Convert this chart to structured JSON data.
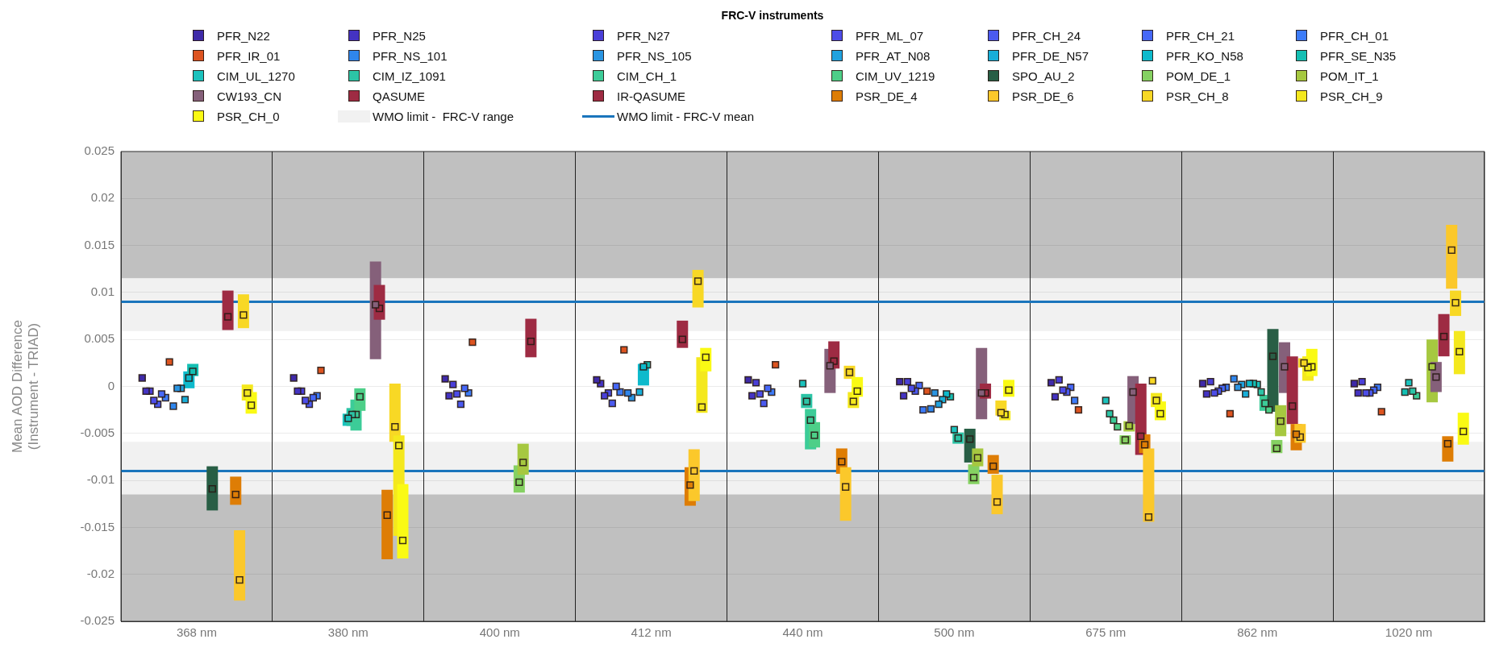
{
  "chart_data": {
    "type": "scatter",
    "title": "FRC-V instruments",
    "ylabel": "Mean AOD Difference\n(Instrument - TRIAD)",
    "categories": [
      "368 nm",
      "380 nm",
      "400 nm",
      "412 nm",
      "440 nm",
      "500 nm",
      "675 nm",
      "862 nm",
      "1020 nm"
    ],
    "ylim": [
      -0.025,
      0.025
    ],
    "yticks": [
      -0.025,
      -0.02,
      -0.015,
      -0.01,
      -0.005,
      0,
      0.005,
      0.01,
      0.015,
      0.02,
      0.025
    ],
    "grid": true,
    "legend": "top",
    "marker": "square",
    "bands": [
      {
        "axis": "y",
        "from": 0.0115,
        "to": 0.025,
        "color": "#c0c0c0"
      },
      {
        "axis": "y",
        "from": 0.0059,
        "to": 0.0115,
        "label": "WMO limit -  FRC-V range",
        "color": "#f1f1f1"
      },
      {
        "axis": "y",
        "from": -0.0115,
        "to": -0.0059,
        "color": "#f1f1f1"
      },
      {
        "axis": "y",
        "from": -0.025,
        "to": -0.0115,
        "color": "#c0c0c0"
      }
    ],
    "ref_lines": [
      {
        "axis": "y",
        "value": 0.009,
        "label": "WMO limit - FRC-V mean",
        "color": "#1a75bc",
        "line_style": "solid"
      },
      {
        "axis": "y",
        "value": -0.009,
        "color": "#1a75bc",
        "line_style": "solid"
      }
    ],
    "series": [
      {
        "name": "PFR_N22",
        "color": "#3f2aa8",
        "values": [
          0.0009,
          0.0009,
          0.0008,
          0.0007,
          0.0007,
          0.0005,
          0.0004,
          0.0003,
          0.0003
        ]
      },
      {
        "name": "PFR_N25",
        "color": "#4433c2",
        "values": [
          -0.0005,
          -0.0005,
          -0.001,
          0.0003,
          -0.001,
          -0.001,
          -0.0011,
          -0.0008,
          -0.0007
        ]
      },
      {
        "name": "PFR_N27",
        "color": "#4a3fd8",
        "values": [
          -0.0005,
          -0.0005,
          0.0002,
          -0.001,
          0.0004,
          0.0005,
          0.0007,
          0.0005,
          0.0005
        ]
      },
      {
        "name": "PFR_ML_07",
        "color": "#4d4de8",
        "values": [
          -0.0015,
          -0.0015,
          -0.0008,
          -0.0007,
          -0.0008,
          -0.0002,
          -0.0004,
          -0.0007,
          -0.0007
        ]
      },
      {
        "name": "PFR_CH_24",
        "color": "#4b5af0",
        "values": [
          -0.0019,
          -0.0019,
          -0.0019,
          -0.0018,
          -0.0018,
          -0.0005,
          -0.0006,
          -0.0005,
          -0.0007
        ]
      },
      {
        "name": "PFR_CH_21",
        "color": "#4668f8",
        "values": [
          -0.0008,
          -0.0012,
          -0.0002,
          0.0,
          -0.0002,
          0.0001,
          -0.0001,
          -0.0002,
          -0.0004
        ]
      },
      {
        "name": "PFR_CH_01",
        "color": "#3d7cf8",
        "values": [
          -0.0012,
          -0.001,
          -0.0007,
          -0.0006,
          -0.0006,
          -0.0025,
          -0.0015,
          -0.0001,
          -0.0001
        ]
      },
      {
        "name": "PFR_IR_01",
        "color": "#dd5420",
        "values": [
          0.0026,
          0.0017,
          0.0047,
          0.0039,
          0.0023,
          -0.0005,
          -0.0025,
          -0.0029,
          -0.0027
        ]
      },
      {
        "name": "PFR_NS_101",
        "color": "#2f86ec",
        "values": [
          -0.0021,
          null,
          null,
          -0.0007,
          null,
          -0.0024,
          null,
          0.0008,
          null
        ]
      },
      {
        "name": "PFR_NS_105",
        "color": "#2a95e2",
        "values": [
          -0.0002,
          null,
          null,
          -0.0012,
          null,
          -0.0007,
          null,
          -0.0001,
          null
        ]
      },
      {
        "name": "PFR_AT_N08",
        "color": "#20a2df",
        "values": [
          -0.0002,
          null,
          null,
          null,
          null,
          -0.0019,
          null,
          0.0002,
          null
        ]
      },
      {
        "name": "PFR_DE_N57",
        "color": "#18aed8",
        "values": [
          -0.0014,
          null,
          null,
          -0.0006,
          null,
          -0.0014,
          null,
          -0.0008,
          null
        ]
      },
      {
        "name": "PFR_KO_N58",
        "color": "#0ebacc",
        "values": [
          0.0009,
          null,
          null,
          0.0021,
          null,
          -0.0008,
          null,
          0.0003,
          null
        ],
        "errors": [
          [
            -0.0002,
            0.0016
          ],
          null,
          null,
          [
            0.0001,
            0.0024
          ],
          null,
          null,
          null,
          null,
          null
        ]
      },
      {
        "name": "PFR_SE_N35",
        "color": "#14bfb3",
        "values": [
          0.0016,
          null,
          null,
          0.0023,
          null,
          -0.0011,
          null,
          0.0003,
          -0.0006
        ],
        "errors": [
          [
            0.0011,
            0.0024
          ],
          null,
          null,
          null,
          null,
          null,
          null,
          null,
          null
        ]
      },
      {
        "name": "CIM_UL_1270",
        "color": "#1bc2bd",
        "values": [
          null,
          -0.0034,
          null,
          null,
          0.0003,
          -0.0046,
          -0.0015,
          0.0002,
          0.0004
        ],
        "errors": [
          null,
          [
            -0.0042,
            -0.0029
          ],
          null,
          null,
          null,
          null,
          null,
          null,
          null
        ]
      },
      {
        "name": "CIM_IZ_1091",
        "color": "#2cc4a6",
        "values": [
          null,
          -0.003,
          null,
          null,
          -0.0016,
          -0.0055,
          -0.0029,
          -0.0006,
          -0.0005
        ],
        "errors": [
          null,
          [
            -0.0042,
            -0.0023
          ],
          null,
          null,
          [
            -0.0023,
            -0.0008
          ],
          [
            -0.0061,
            -0.0049
          ],
          null,
          null,
          null
        ]
      },
      {
        "name": "CIM_CH_1",
        "color": "#3ccc98",
        "values": [
          null,
          -0.003,
          null,
          null,
          -0.0036,
          null,
          -0.0036,
          -0.0018,
          -0.001
        ],
        "errors": [
          null,
          [
            -0.0047,
            -0.0014
          ],
          null,
          null,
          [
            -0.0067,
            -0.0024
          ],
          null,
          null,
          [
            -0.0026,
            -0.0009
          ],
          null
        ]
      },
      {
        "name": "CIM_UV_1219",
        "color": "#4dcf88",
        "values": [
          null,
          -0.0011,
          null,
          null,
          -0.0052,
          null,
          -0.0043,
          -0.0025,
          null
        ],
        "errors": [
          null,
          [
            -0.0026,
            -0.0002
          ],
          null,
          null,
          [
            -0.0065,
            -0.0038
          ],
          null,
          null,
          null,
          null
        ]
      },
      {
        "name": "SPO_AU_2",
        "color": "#285e45",
        "values": [
          -0.0109,
          null,
          null,
          null,
          null,
          -0.0056,
          null,
          0.0032,
          null
        ],
        "errors": [
          [
            -0.0132,
            -0.0085
          ],
          null,
          null,
          null,
          null,
          [
            -0.0081,
            -0.0045
          ],
          null,
          [
            -0.0027,
            0.0061
          ],
          null
        ]
      },
      {
        "name": "POM_DE_1",
        "color": "#85d162",
        "values": [
          null,
          null,
          -0.0102,
          null,
          null,
          -0.0097,
          -0.0057,
          -0.0066,
          null
        ],
        "errors": [
          null,
          null,
          [
            -0.0113,
            -0.0084
          ],
          null,
          null,
          [
            -0.0104,
            -0.0083
          ],
          [
            -0.0062,
            -0.0052
          ],
          [
            -0.0071,
            -0.0057
          ],
          null
        ]
      },
      {
        "name": "POM_IT_1",
        "color": "#a6c840",
        "values": [
          null,
          null,
          -0.0081,
          null,
          null,
          -0.0076,
          -0.0042,
          -0.0037,
          0.0021
        ],
        "errors": [
          null,
          null,
          [
            -0.0094,
            -0.0061
          ],
          null,
          null,
          [
            -0.0085,
            -0.0066
          ],
          [
            -0.0048,
            -0.0037
          ],
          [
            -0.0053,
            -0.002
          ],
          [
            -0.0017,
            0.005
          ]
        ]
      },
      {
        "name": "CW193_CN",
        "color": "#85607a",
        "values": [
          null,
          0.0087,
          null,
          null,
          0.0022,
          -0.0007,
          -0.0006,
          0.0021,
          0.001
        ],
        "errors": [
          null,
          [
            0.0029,
            0.0133
          ],
          null,
          null,
          [
            -0.0007,
            0.004
          ],
          [
            -0.0035,
            0.0041
          ],
          [
            -0.004,
            0.0011
          ],
          [
            -0.0007,
            0.0047
          ],
          [
            -0.0006,
            0.0026
          ]
        ]
      },
      {
        "name": "QASUME",
        "color": "#9e2b43",
        "values": [
          0.0074,
          0.0083,
          0.0048,
          0.005,
          0.0027,
          -0.0007,
          null,
          null,
          null
        ],
        "errors": [
          [
            0.006,
            0.0102
          ],
          [
            0.0071,
            0.0108
          ],
          [
            0.0031,
            0.0072
          ],
          [
            0.0041,
            0.007
          ],
          [
            0.0019,
            0.0048
          ],
          [
            -0.0013,
            0.0003
          ],
          null,
          null,
          null
        ]
      },
      {
        "name": "IR-QASUME",
        "color": "#9e2b43",
        "values": [
          null,
          null,
          null,
          null,
          null,
          null,
          -0.0053,
          -0.0021,
          0.0053
        ],
        "errors": [
          null,
          null,
          null,
          null,
          null,
          null,
          [
            -0.0073,
            0.0003
          ],
          [
            -0.004,
            0.0032
          ],
          [
            0.0032,
            0.0077
          ]
        ]
      },
      {
        "name": "PSR_DE_4",
        "color": "#de7d05",
        "values": [
          -0.0115,
          -0.0137,
          null,
          -0.0105,
          -0.008,
          -0.0085,
          -0.0062,
          -0.0051,
          -0.0061
        ],
        "errors": [
          [
            -0.0126,
            -0.0096
          ],
          [
            -0.0184,
            -0.011
          ],
          null,
          [
            -0.0127,
            -0.0086
          ],
          [
            -0.0093,
            -0.0066
          ],
          [
            -0.0093,
            -0.0073
          ],
          [
            -0.0071,
            -0.0051
          ],
          [
            -0.0068,
            -0.004
          ],
          [
            -0.008,
            -0.0053
          ]
        ]
      },
      {
        "name": "PSR_DE_6",
        "color": "#fbc82b",
        "values": [
          -0.0206,
          null,
          null,
          -0.009,
          -0.0107,
          -0.0123,
          -0.0139,
          -0.0054,
          0.0145
        ],
        "errors": [
          [
            -0.0228,
            -0.0153
          ],
          null,
          null,
          [
            -0.0122,
            -0.0067
          ],
          [
            -0.0143,
            -0.0086
          ],
          [
            -0.0136,
            -0.0094
          ],
          [
            -0.0144,
            -0.0066
          ],
          [
            -0.006,
            -0.004
          ],
          [
            0.0104,
            0.0172
          ]
        ]
      },
      {
        "name": "PSR_CH_8",
        "color": "#f8d825",
        "values": [
          0.0076,
          -0.0043,
          null,
          0.0112,
          0.0015,
          -0.0028,
          0.0006,
          0.0025,
          0.0089
        ],
        "errors": [
          [
            0.0062,
            0.0098
          ],
          [
            -0.0059,
            0.0003
          ],
          null,
          [
            0.0084,
            0.0124
          ],
          [
            0.0008,
            0.0022
          ],
          [
            -0.0031,
            -0.0015
          ],
          null,
          [
            0.002,
            0.003
          ],
          [
            0.0075,
            0.0102
          ]
        ]
      },
      {
        "name": "PSR_CH_9",
        "color": "#f4e81e",
        "values": [
          -0.0007,
          -0.0063,
          null,
          -0.0022,
          -0.0016,
          -0.003,
          -0.0015,
          0.002,
          0.0037
        ],
        "errors": [
          [
            -0.0015,
            0.0002
          ],
          [
            -0.0159,
            -0.0052
          ],
          null,
          [
            -0.0028,
            0.0031
          ],
          [
            -0.0023,
            -0.0006
          ],
          [
            -0.0036,
            -0.0026
          ],
          [
            -0.0022,
            -0.0007
          ],
          [
            0.0006,
            0.0032
          ],
          [
            0.0013,
            0.0059
          ]
        ]
      },
      {
        "name": "PSR_CH_0",
        "color": "#fafa14",
        "values": [
          -0.002,
          -0.0164,
          null,
          0.0031,
          -0.0005,
          -0.0004,
          -0.0029,
          0.0021,
          -0.0048
        ],
        "errors": [
          [
            -0.0029,
            -0.0006
          ],
          [
            -0.0183,
            -0.0104
          ],
          null,
          [
            0.0016,
            0.0041
          ],
          [
            -0.0011,
            0.001
          ],
          [
            -0.0011,
            0.0007
          ],
          [
            -0.0036,
            -0.0016
          ],
          [
            0.0011,
            0.004
          ],
          [
            -0.0062,
            -0.0028
          ]
        ]
      }
    ]
  }
}
